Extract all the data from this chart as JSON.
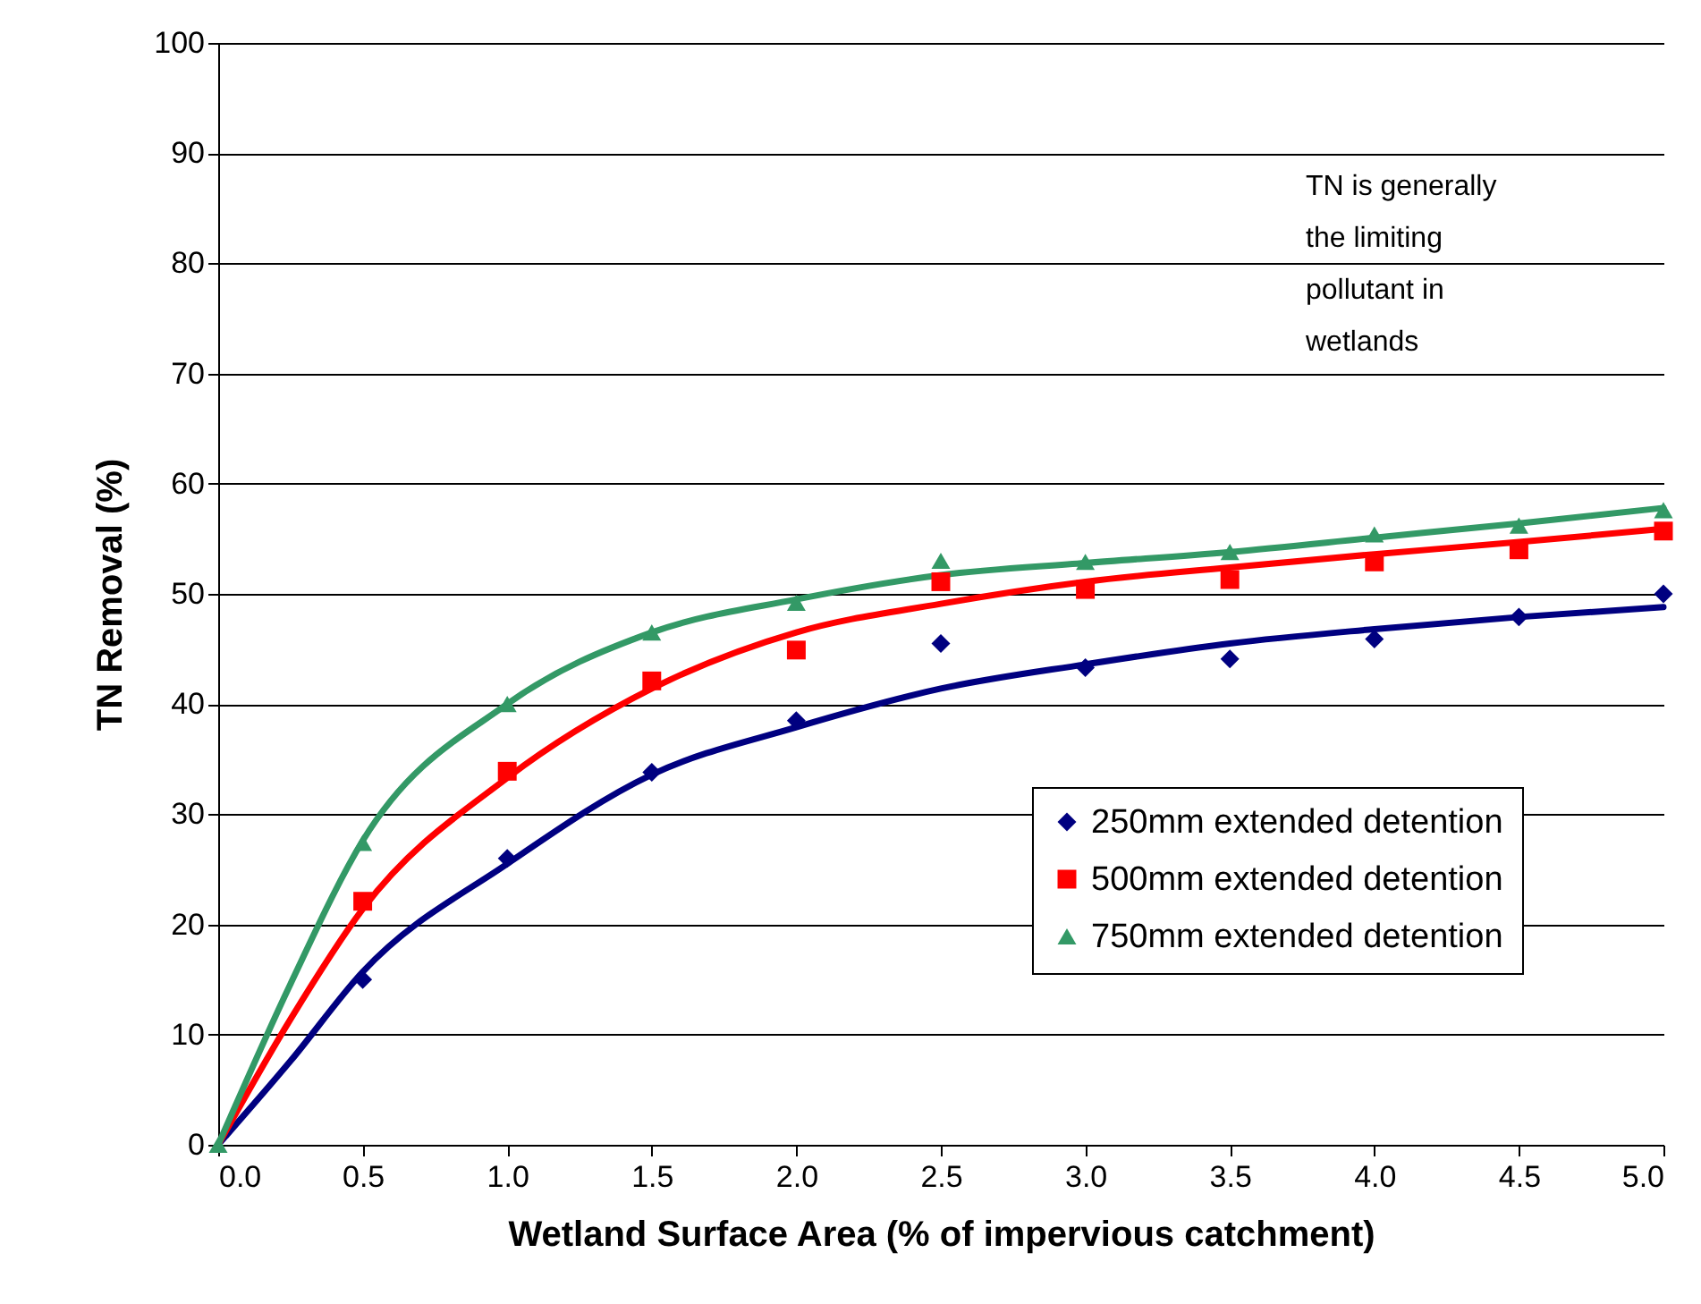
{
  "chart_data": {
    "type": "scatter",
    "xlabel": "Wetland Surface Area (% of impervious catchment)",
    "ylabel": "TN Removal (%)",
    "xlim": [
      0,
      5
    ],
    "xticks": [
      {
        "value": 0,
        "label": "0.0"
      },
      {
        "value": 0.5,
        "label": "0.5"
      },
      {
        "value": 1,
        "label": "1.0"
      },
      {
        "value": 1.5,
        "label": "1.5"
      },
      {
        "value": 2,
        "label": "2.0"
      },
      {
        "value": 2.5,
        "label": "2.5"
      },
      {
        "value": 3,
        "label": "3.0"
      },
      {
        "value": 3.5,
        "label": "3.5"
      },
      {
        "value": 4,
        "label": "4.0"
      },
      {
        "value": 4.5,
        "label": "4.5"
      },
      {
        "value": 5,
        "label": "5.0"
      }
    ],
    "ylim": [
      0,
      100
    ],
    "yticks": [
      0,
      10,
      20,
      30,
      40,
      50,
      60,
      70,
      80,
      90,
      100
    ],
    "grid": "y",
    "legend": "bottom right",
    "annotations": [
      "TN is generally the limiting pollutant in wetlands"
    ],
    "series": [
      {
        "type": "line",
        "color": "#000080",
        "marker": "none",
        "line_style": "solid",
        "x": [
          0,
          0.25,
          0.5,
          1,
          1.5,
          2,
          2.5,
          3,
          3.5,
          4,
          4.5,
          5
        ],
        "values": [
          0,
          7.6,
          15.7,
          25.5,
          33.6,
          37.9,
          41.4,
          43.6,
          45.5,
          46.8,
          47.9,
          48.8
        ]
      },
      {
        "type": "line",
        "color": "#ff0000",
        "marker": "none",
        "line_style": "solid",
        "x": [
          0,
          0.25,
          0.5,
          1,
          1.5,
          2,
          2.5,
          3,
          3.5,
          4,
          4.5,
          5
        ],
        "values": [
          0,
          11.4,
          21.4,
          33.3,
          41.4,
          46.5,
          49.1,
          51.1,
          52.4,
          53.6,
          54.7,
          55.9
        ]
      },
      {
        "type": "line",
        "color": "#339966",
        "marker": "none",
        "line_style": "solid",
        "x": [
          0,
          0.25,
          0.5,
          1,
          1.5,
          2,
          2.5,
          3,
          3.5,
          4,
          4.5,
          5
        ],
        "values": [
          0,
          14.6,
          27.6,
          40,
          46.5,
          49.5,
          51.7,
          52.8,
          53.8,
          55.1,
          56.4,
          57.8
        ]
      },
      {
        "name": "250mm extended detention",
        "color": "#000080",
        "marker": "diamond",
        "x": [
          0.5,
          1,
          1.5,
          2,
          2.5,
          3,
          3.5,
          4,
          4.5,
          5
        ],
        "values": [
          15,
          26,
          33.8,
          38.5,
          45.5,
          43.3,
          44.1,
          45.9,
          47.9,
          50
        ]
      },
      {
        "name": "500mm extended detention",
        "color": "#ff0000",
        "marker": "square",
        "x": [
          0.5,
          1,
          1.5,
          2,
          2.5,
          3,
          3.5,
          4,
          4.5,
          5
        ],
        "values": [
          22.1,
          33.9,
          42.1,
          44.9,
          51.1,
          50.4,
          51.3,
          52.9,
          54,
          55.7
        ]
      },
      {
        "name": "750mm extended detention",
        "color": "#339966",
        "marker": "triangle",
        "x": [
          0,
          0.5,
          1,
          1.5,
          2,
          2.5,
          3,
          3.5,
          4,
          4.5,
          5
        ],
        "values": [
          0,
          27.4,
          40,
          46.5,
          49.2,
          53,
          52.9,
          53.8,
          55.4,
          56.2,
          57.6
        ]
      }
    ]
  }
}
